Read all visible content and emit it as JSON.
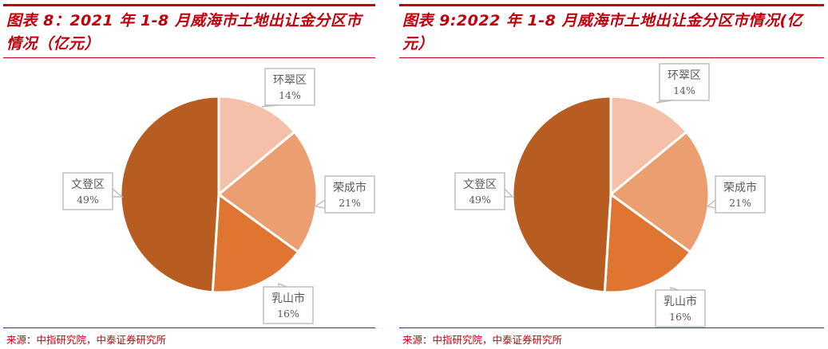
{
  "chart_data": [
    {
      "type": "pie",
      "title": "图表 8：2021 年 1-8 月威海市土地出让金分区市情况（亿元）",
      "categories": [
        "环翠区",
        "荣成市",
        "乳山市",
        "文登区"
      ],
      "values": [
        14,
        21,
        16,
        49
      ],
      "value_labels": [
        "14%",
        "21%",
        "16%",
        "49%"
      ],
      "colors": [
        "#f5c0aa",
        "#eb9e70",
        "#de7530",
        "#b85d22"
      ],
      "source": "来源：中指研究院，中泰证券研究所"
    },
    {
      "type": "pie",
      "title": "图表 9:2022 年 1-8 月威海市土地出让金分区市情况(亿元）",
      "categories": [
        "环翠区",
        "荣成市",
        "乳山市",
        "文登区"
      ],
      "values": [
        14,
        21,
        16,
        49
      ],
      "value_labels": [
        "14%",
        "21%",
        "16%",
        "49%"
      ],
      "colors": [
        "#f5c0aa",
        "#eb9e70",
        "#de7530",
        "#b85d22"
      ],
      "source": "来源：中指研究院，中泰证券研究所"
    }
  ]
}
